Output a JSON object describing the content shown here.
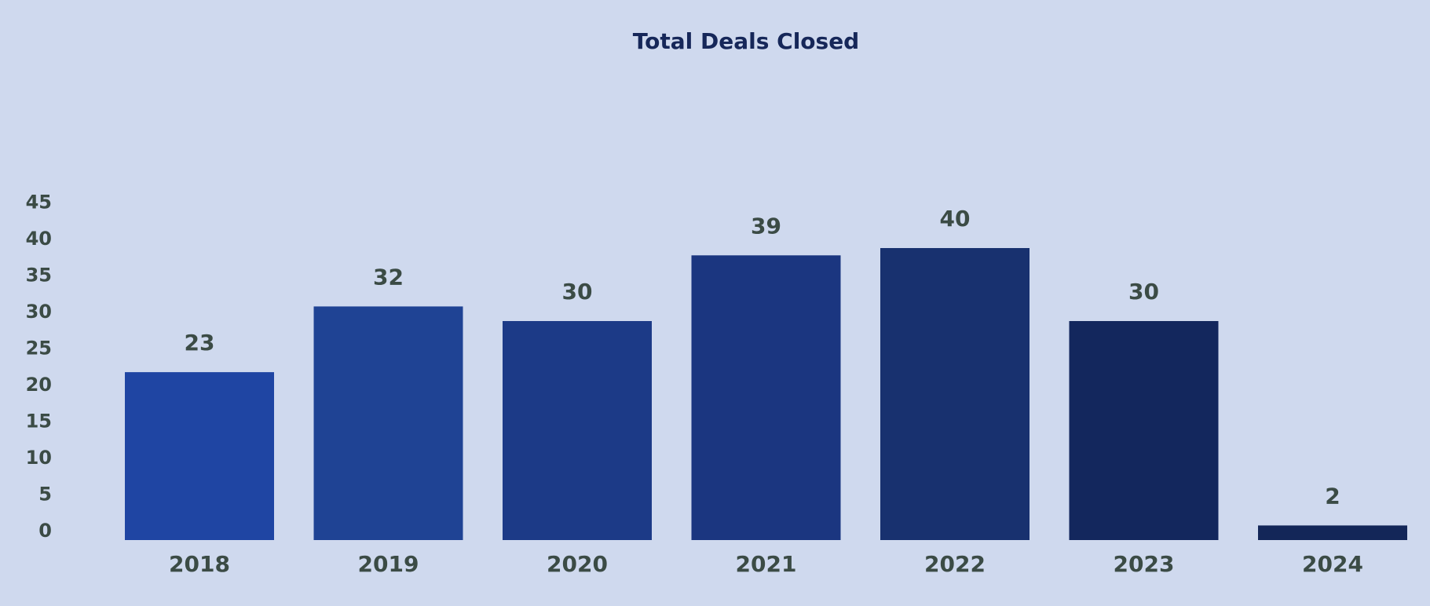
{
  "chart_data": {
    "type": "bar",
    "title": "Total Deals Closed",
    "xlabel": "",
    "ylabel": "",
    "categories": [
      "2018",
      "2019",
      "2020",
      "2021",
      "2022",
      "2023",
      "2024"
    ],
    "values": [
      23,
      32,
      30,
      39,
      40,
      30,
      2
    ],
    "data_labels": [
      "23",
      "32",
      "30",
      "39",
      "40",
      "30",
      "2"
    ],
    "ylim": [
      0,
      45
    ],
    "yticks": [
      0,
      5,
      10,
      15,
      20,
      25,
      30,
      35,
      40,
      45
    ],
    "grid": false,
    "bar_colors": [
      "#1f45a3",
      "#1f4394",
      "#1c3a87",
      "#1b3680",
      "#18316f",
      "#13275d",
      "#132658"
    ],
    "background": "#cfd9ee",
    "title_color": "#162759",
    "label_color": "#3b4b45"
  }
}
